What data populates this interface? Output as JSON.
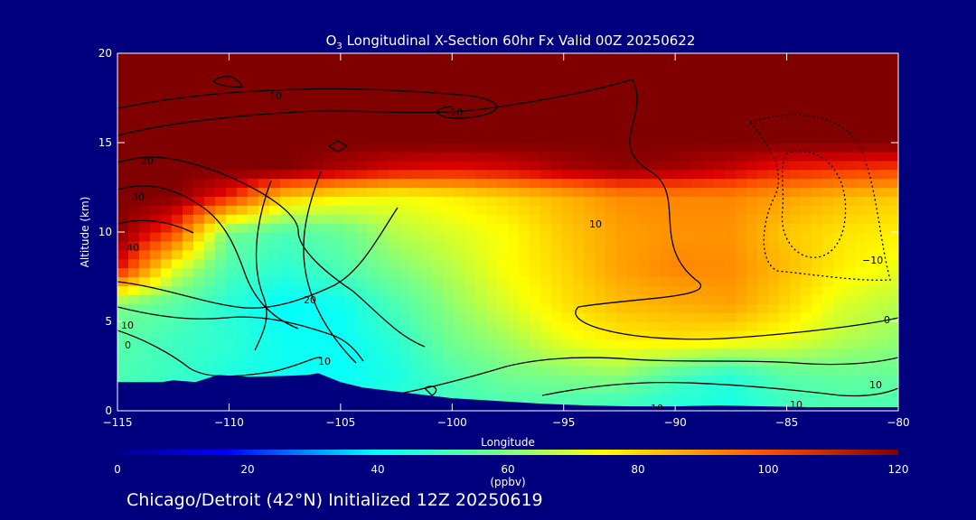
{
  "chart_data": {
    "type": "heatmap",
    "title": "O3 Longitudinal X-Section 60hr  Fx Valid 00Z 20250622",
    "title_parts": {
      "pre": "O",
      "sub": "3",
      "post": " Longitudinal X-Section 60hr  Fx Valid 00Z 20250622"
    },
    "xlabel": "Longitude",
    "ylabel": "Altitude (km)",
    "xlim": [
      -115,
      -80
    ],
    "ylim": [
      0,
      20
    ],
    "x_ticks": [
      -115,
      -110,
      -105,
      -100,
      -95,
      -90,
      -85,
      -80
    ],
    "x_tick_labels": [
      "−115",
      "−110",
      "−105",
      "−100",
      "−95",
      "−90",
      "−85",
      "−80"
    ],
    "y_ticks": [
      0,
      5,
      10,
      15,
      20
    ],
    "colorbar": {
      "label": "(ppbv)",
      "range": [
        0,
        120
      ],
      "ticks": [
        0,
        20,
        40,
        60,
        80,
        100,
        120
      ]
    },
    "ozone_ppbv": {
      "lon": [
        -115,
        -112.5,
        -110,
        -107.5,
        -105,
        -102.5,
        -100,
        -97.5,
        -95,
        -92.5,
        -90,
        -87.5,
        -85,
        -82.5,
        -80
      ],
      "alt_km": [
        0.5,
        2,
        4,
        6,
        8,
        10,
        12,
        13.5,
        15,
        17,
        19.5
      ],
      "values": [
        [
          50,
          48,
          46,
          45,
          45,
          46,
          50,
          52,
          52,
          50,
          46,
          44,
          50,
          52,
          52
        ],
        [
          52,
          49,
          45,
          42,
          41,
          44,
          52,
          58,
          60,
          62,
          52,
          46,
          54,
          56,
          56
        ],
        [
          54,
          50,
          47,
          42,
          41,
          47,
          58,
          64,
          72,
          76,
          78,
          76,
          72,
          66,
          62
        ],
        [
          60,
          54,
          46,
          40,
          42,
          52,
          62,
          70,
          78,
          84,
          86,
          88,
          80,
          70,
          66
        ],
        [
          110,
          72,
          52,
          47,
          52,
          60,
          66,
          74,
          80,
          88,
          92,
          91,
          84,
          76,
          72
        ],
        [
          120,
          102,
          58,
          52,
          56,
          66,
          70,
          74,
          82,
          88,
          90,
          90,
          82,
          78,
          76
        ],
        [
          120,
          120,
          106,
          82,
          76,
          73,
          76,
          80,
          85,
          91,
          92,
          92,
          88,
          84,
          82
        ],
        [
          120,
          120,
          120,
          120,
          115,
          110,
          108,
          110,
          115,
          118,
          116,
          112,
          106,
          104,
          102
        ],
        [
          120,
          120,
          120,
          120,
          120,
          120,
          120,
          120,
          120,
          120,
          120,
          120,
          120,
          120,
          120
        ],
        [
          120,
          120,
          120,
          120,
          120,
          120,
          120,
          120,
          120,
          120,
          120,
          120,
          120,
          120,
          120
        ],
        [
          120,
          120,
          120,
          120,
          120,
          120,
          120,
          120,
          120,
          120,
          120,
          120,
          120,
          120,
          120
        ]
      ]
    },
    "terrain_km": {
      "lon": [
        -115,
        -113,
        -112.5,
        -111.5,
        -110.5,
        -109,
        -107.5,
        -106.5,
        -106,
        -105,
        -104,
        -102,
        -100,
        -98,
        -96,
        -94,
        -92,
        -90,
        -88,
        -86,
        -84,
        -82,
        -80
      ],
      "alt": [
        1.6,
        1.6,
        1.7,
        1.6,
        2.0,
        1.9,
        1.95,
        2.0,
        2.1,
        1.6,
        1.3,
        1.0,
        0.7,
        0.55,
        0.4,
        0.3,
        0.25,
        0.25,
        0.3,
        0.25,
        0.2,
        0.2,
        0.2
      ]
    },
    "contour_labels": [
      "10",
      "10",
      "20",
      "30",
      "40",
      "10",
      "0",
      "20",
      "10",
      "10",
      "−10",
      "0",
      "10",
      "10",
      "10"
    ],
    "grid": false,
    "legend": "none",
    "colors": {
      "background": "#00007f",
      "terrain": "#00007f",
      "max": "#800000",
      "axis": "#ffffff",
      "contour": "#000000"
    }
  },
  "footer": {
    "caption": "Chicago/Detroit (42°N) Initialized 12Z 20250619"
  }
}
